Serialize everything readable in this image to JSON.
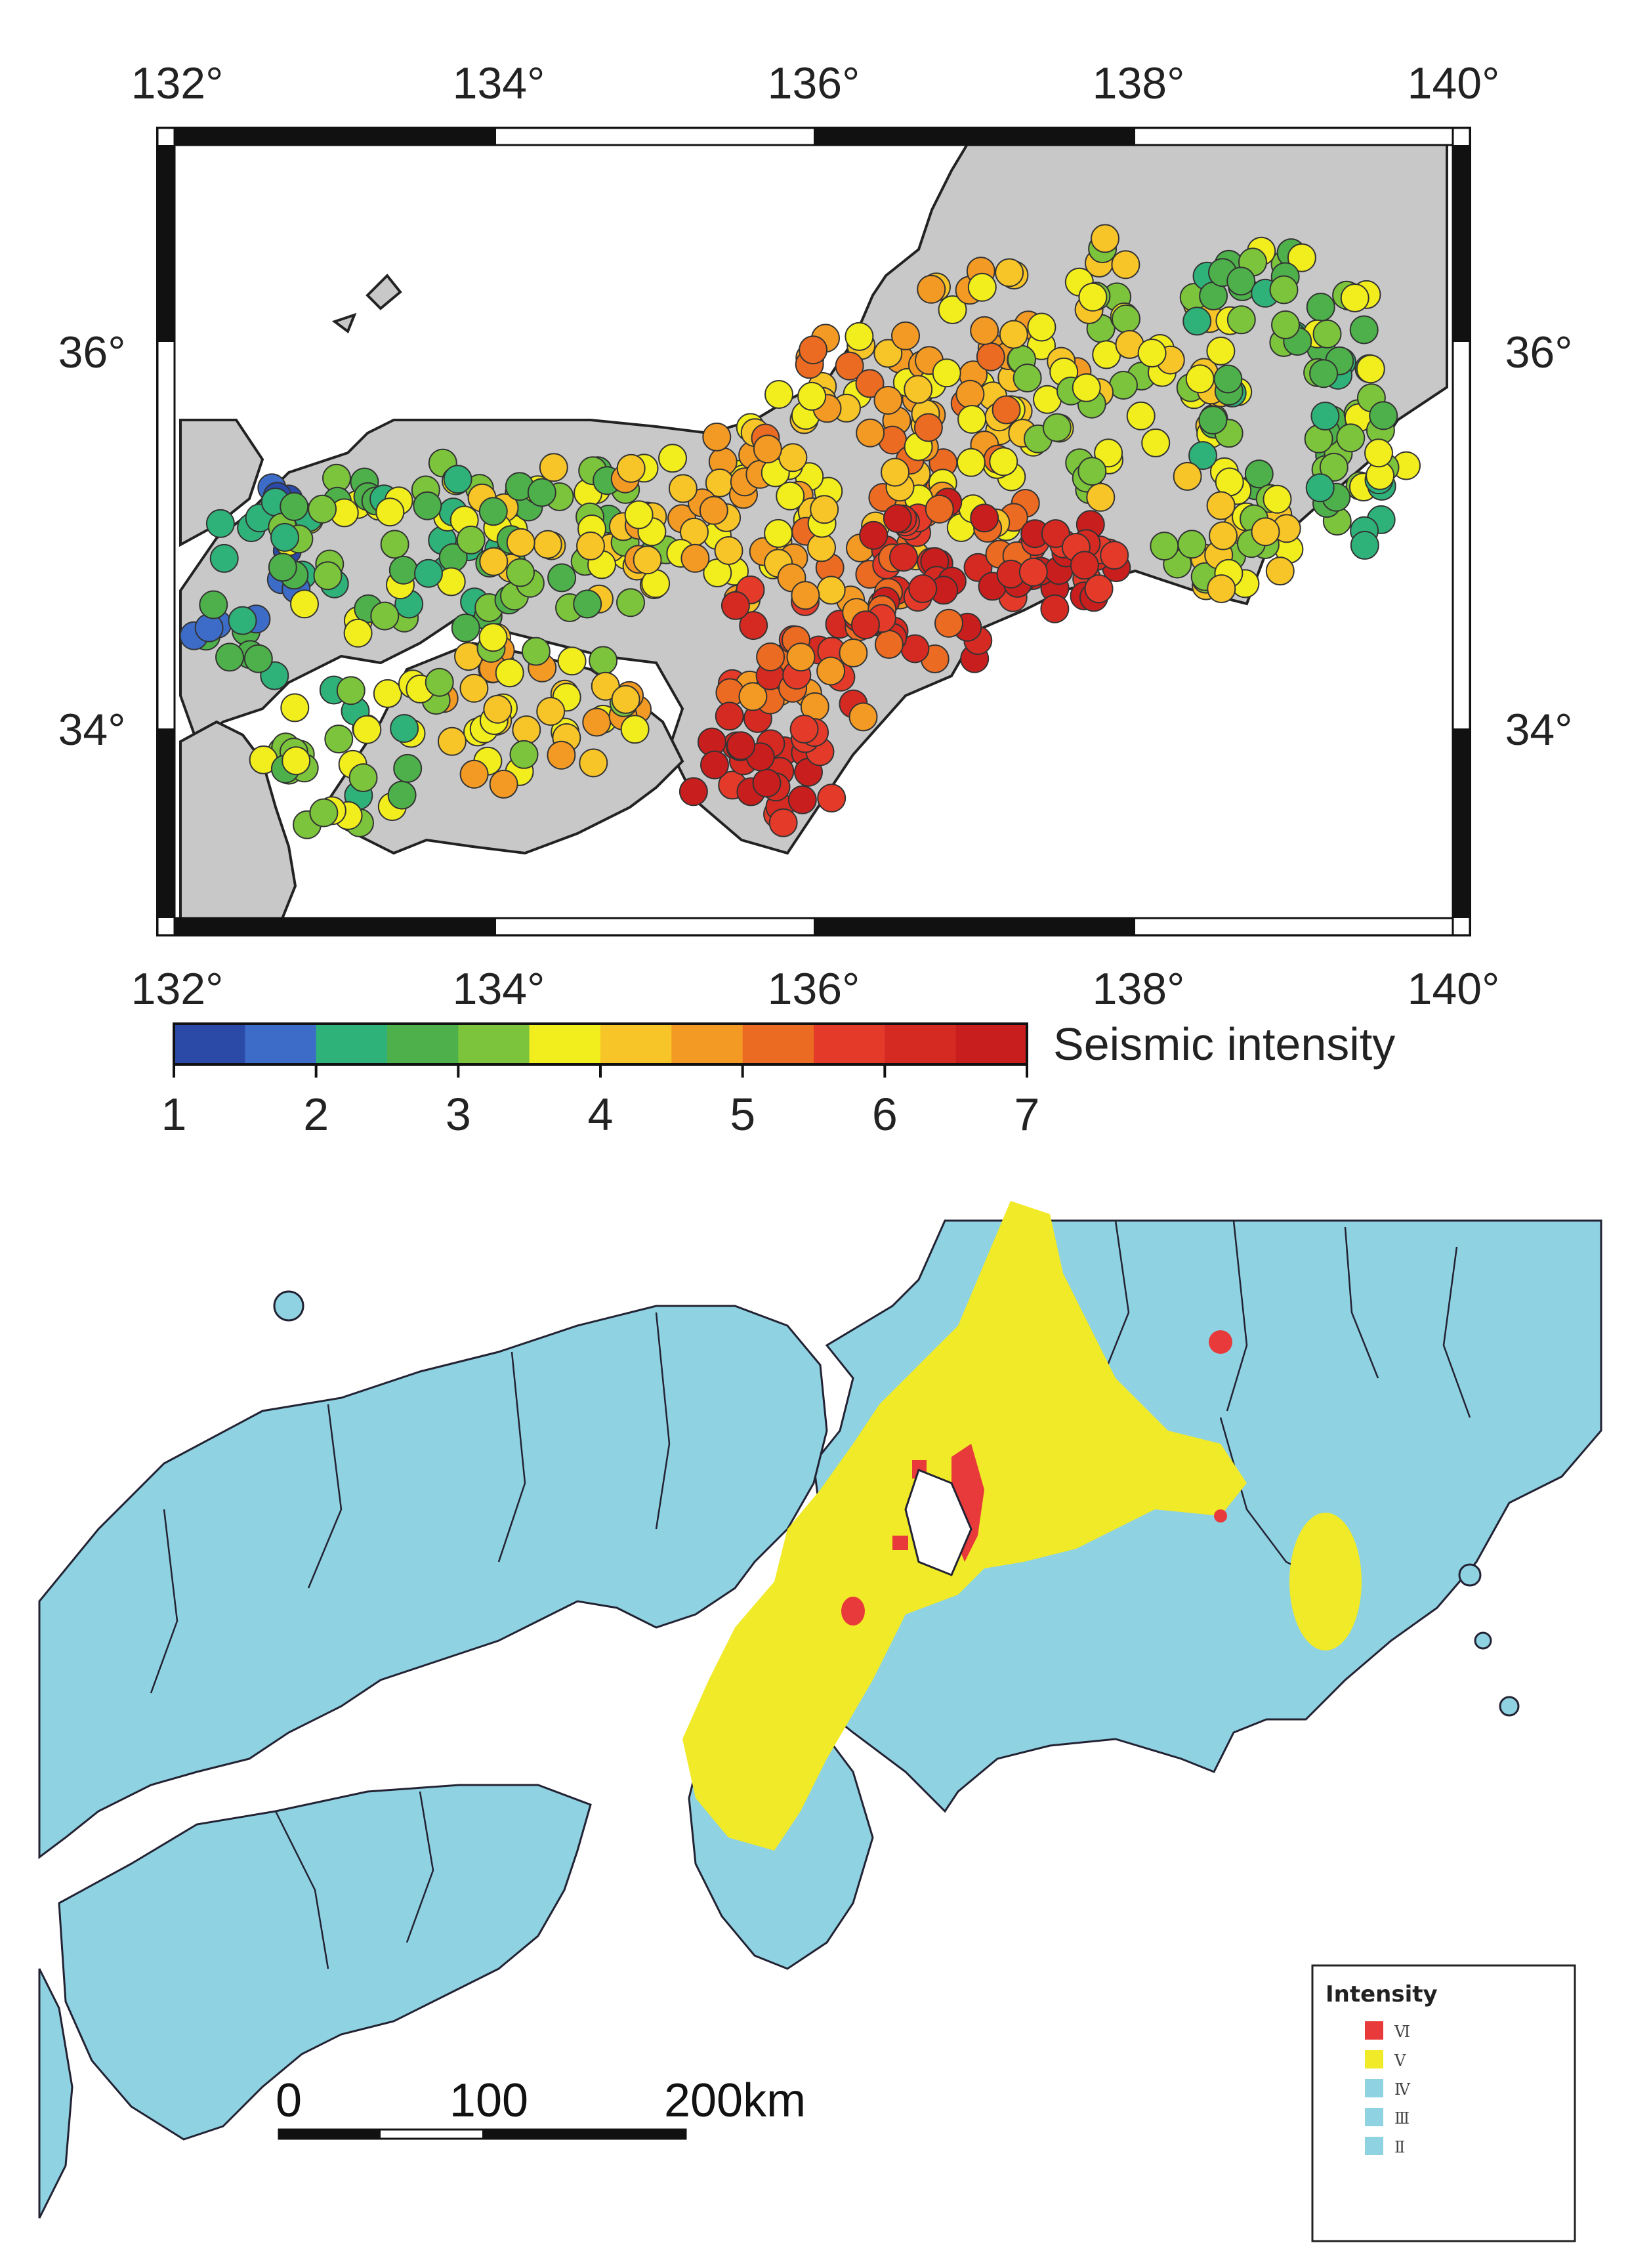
{
  "top_map": {
    "lon_labels": [
      "132°",
      "134°",
      "136°",
      "138°",
      "140°"
    ],
    "lat_labels": [
      "36°",
      "34°"
    ],
    "colorbar": {
      "title": "Seismic intensity",
      "tick_labels": [
        "1",
        "2",
        "3",
        "4",
        "5",
        "6",
        "7"
      ],
      "colors": [
        "#2b4aa8",
        "#3c6cc8",
        "#2fb27a",
        "#4db04a",
        "#7cc43c",
        "#f2ee1e",
        "#f7c528",
        "#f39a24",
        "#ec6b22",
        "#e43a2a",
        "#d42a22",
        "#c81e1e"
      ]
    },
    "land_color": "#c8c8c8",
    "sea_color": "#ffffff"
  },
  "bottom_map": {
    "legend": {
      "title": "Intensity",
      "items": [
        {
          "label": "Ⅵ",
          "color": "#e83a3a"
        },
        {
          "label": "Ⅴ",
          "color": "#f0ea28"
        },
        {
          "label": "Ⅳ",
          "color": "#8fd2e2"
        },
        {
          "label": "Ⅲ",
          "color": "#8fd2e2"
        },
        {
          "label": "Ⅱ",
          "color": "#8fd2e2"
        }
      ]
    },
    "scale_labels": [
      "0",
      "100",
      "200km"
    ],
    "land_color": "#8fd2e2",
    "intensity_v_color": "#f0ea28",
    "intensity_vi_color": "#e83a3a"
  }
}
